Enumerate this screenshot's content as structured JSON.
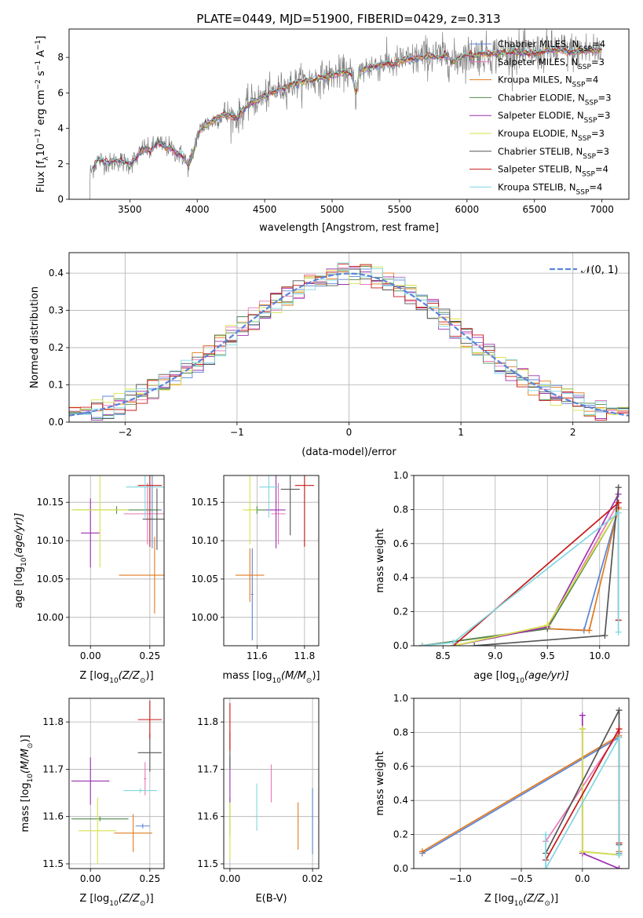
{
  "figure_title": "PLATE=0449, MJD=51900, FIBERID=0429, z=0.313",
  "colors": {
    "Chabrier MILES": "#5b84d6",
    "Salpeter MILES": "#e877b8",
    "Kroupa MILES": "#e07a1f",
    "Chabrier ELODIE": "#4f8a4f",
    "Salpeter ELODIE": "#9b30b0",
    "Kroupa ELODIE": "#d8e24a",
    "Chabrier STELIB": "#555555",
    "Salpeter STELIB": "#c81818",
    "Kroupa STELIB": "#7fd6e0",
    "spectrum": "#808080",
    "gaussian": "#5b84d6"
  },
  "chart_data": [
    {
      "id": "spectrum",
      "type": "line",
      "title": "PLATE=0449, MJD=51900, FIBERID=0429, z=0.313",
      "xlabel": "wavelength [Angstrom, rest frame]",
      "ylabel_parts": [
        "Flux [f",
        "λ",
        "10",
        "−17",
        " erg cm",
        "−2",
        " s",
        "−1",
        " A",
        "−1",
        "]"
      ],
      "xlim": [
        3050,
        7200
      ],
      "ylim": [
        0,
        9.6
      ],
      "xticks": [
        3500,
        4000,
        4500,
        5000,
        5500,
        6000,
        6500,
        7000
      ],
      "yticks": [
        0,
        2,
        4,
        6,
        8
      ],
      "grid": false,
      "legend_position": "top-right",
      "spectrum_range": [
        3200,
        7000
      ],
      "continuum": [
        [
          3200,
          1.4
        ],
        [
          3260,
          2.2
        ],
        [
          3300,
          2.2
        ],
        [
          3350,
          2.0
        ],
        [
          3400,
          2.2
        ],
        [
          3450,
          2.1
        ],
        [
          3500,
          2.0
        ],
        [
          3550,
          2.3
        ],
        [
          3600,
          2.9
        ],
        [
          3650,
          2.7
        ],
        [
          3700,
          3.2
        ],
        [
          3750,
          3.0
        ],
        [
          3800,
          2.9
        ],
        [
          3850,
          2.6
        ],
        [
          3900,
          2.4
        ],
        [
          3930,
          1.9
        ],
        [
          3970,
          2.6
        ],
        [
          4000,
          3.6
        ],
        [
          4050,
          4.2
        ],
        [
          4100,
          4.3
        ],
        [
          4150,
          4.6
        ],
        [
          4200,
          4.8
        ],
        [
          4250,
          4.7
        ],
        [
          4300,
          4.6
        ],
        [
          4350,
          5.1
        ],
        [
          4400,
          5.5
        ],
        [
          4450,
          5.6
        ],
        [
          4500,
          5.8
        ],
        [
          4550,
          6.0
        ],
        [
          4600,
          6.2
        ],
        [
          4650,
          6.3
        ],
        [
          4700,
          6.5
        ],
        [
          4750,
          6.6
        ],
        [
          4800,
          6.7
        ],
        [
          4850,
          6.7
        ],
        [
          4900,
          6.8
        ],
        [
          4950,
          6.9
        ],
        [
          5000,
          7.0
        ],
        [
          5050,
          7.1
        ],
        [
          5100,
          7.2
        ],
        [
          5150,
          7.0
        ],
        [
          5175,
          5.9
        ],
        [
          5200,
          7.1
        ],
        [
          5250,
          7.4
        ],
        [
          5300,
          7.5
        ],
        [
          5350,
          7.6
        ],
        [
          5400,
          7.7
        ],
        [
          5450,
          7.6
        ],
        [
          5500,
          7.8
        ],
        [
          5550,
          7.9
        ],
        [
          5600,
          7.9
        ],
        [
          5650,
          8.0
        ],
        [
          5700,
          8.1
        ],
        [
          5750,
          8.1
        ],
        [
          5800,
          8.0
        ],
        [
          5850,
          8.2
        ],
        [
          5890,
          7.7
        ],
        [
          5950,
          8.0
        ],
        [
          6000,
          8.1
        ],
        [
          6100,
          8.2
        ],
        [
          6200,
          8.2
        ],
        [
          6300,
          8.3
        ],
        [
          6400,
          8.3
        ],
        [
          6500,
          8.2
        ],
        [
          6600,
          8.4
        ],
        [
          6700,
          8.4
        ],
        [
          6800,
          8.3
        ],
        [
          6900,
          8.4
        ],
        [
          7000,
          8.4
        ]
      ],
      "models": [
        {
          "name": "Chabrier MILES",
          "nssp": "4"
        },
        {
          "name": "Salpeter MILES",
          "nssp": "3"
        },
        {
          "name": "Kroupa MILES",
          "nssp": "4"
        },
        {
          "name": "Chabrier ELODIE",
          "nssp": "3"
        },
        {
          "name": "Salpeter ELODIE",
          "nssp": "3"
        },
        {
          "name": "Kroupa ELODIE",
          "nssp": "3"
        },
        {
          "name": "Chabrier STELIB",
          "nssp": "3"
        },
        {
          "name": "Salpeter STELIB",
          "nssp": "4"
        },
        {
          "name": "Kroupa STELIB",
          "nssp": "4"
        }
      ],
      "legend_nssp_label": "N"
    },
    {
      "id": "residuals",
      "type": "line",
      "xlabel": "(data-model)/error",
      "ylabel": "Normed distribution",
      "xlim": [
        -2.5,
        2.5
      ],
      "ylim": [
        0,
        0.455
      ],
      "xticks": [
        -2,
        -1,
        0,
        1,
        2
      ],
      "yticks": [
        0.0,
        0.1,
        0.2,
        0.3,
        0.4
      ],
      "grid": true,
      "legend_position": "top-right",
      "legend_gaussian": "𝒩(0, 1)",
      "bin_width": 0.1
    },
    {
      "id": "age_vs_z",
      "type": "scatter",
      "xlabel": "Z [log",
      "xlabel_parts": [
        "Z [log",
        "10",
        "(Z/Z",
        "⊙",
        ")]"
      ],
      "ylabel_parts": [
        "age  [log",
        "10",
        "(age/yr)]"
      ],
      "xlim": [
        -0.09,
        0.31
      ],
      "ylim": [
        9.963,
        10.185
      ],
      "xticks": [
        0.0,
        0.25
      ],
      "yticks": [
        10.0,
        10.05,
        10.1,
        10.15
      ],
      "grid": true,
      "points": [
        {
          "model": "Chabrier MILES",
          "x": 0.26,
          "y": 10.14,
          "xerr": 0.04,
          "yerr": 0.05
        },
        {
          "model": "Salpeter MILES",
          "x": 0.24,
          "y": 10.135,
          "xerr": 0.1,
          "yerr": 0.04
        },
        {
          "model": "Kroupa MILES",
          "x": 0.27,
          "y": 10.055,
          "xerr": 0.15,
          "yerr": 0.05
        },
        {
          "model": "Chabrier ELODIE",
          "x": 0.11,
          "y": 10.14,
          "xerr": 0.18,
          "yerr": 0.005
        },
        {
          "model": "Salpeter ELODIE",
          "x": 0.0,
          "y": 10.11,
          "xerr": 0.04,
          "yerr": 0.045
        },
        {
          "model": "Kroupa ELODIE",
          "x": 0.04,
          "y": 10.14,
          "xerr": 0.12,
          "yerr": 0.075
        },
        {
          "model": "Chabrier STELIB",
          "x": 0.28,
          "y": 10.128,
          "xerr": 0.06,
          "yerr": 0.04
        },
        {
          "model": "Salpeter STELIB",
          "x": 0.25,
          "y": 10.172,
          "xerr": 0.05,
          "yerr": 0.08
        },
        {
          "model": "Kroupa STELIB",
          "x": 0.23,
          "y": 10.17,
          "xerr": 0.08,
          "yerr": 0.04
        }
      ]
    },
    {
      "id": "age_vs_mass",
      "type": "scatter",
      "xlabel_parts": [
        "mass [log",
        "10",
        "(M/M",
        "⊙",
        ")]"
      ],
      "xlim": [
        11.46,
        11.86
      ],
      "ylim": [
        9.963,
        10.185
      ],
      "xticks": [
        11.6,
        11.8
      ],
      "yticks": [
        10.0,
        10.05,
        10.1,
        10.15
      ],
      "grid": true,
      "points": [
        {
          "model": "Chabrier MILES",
          "x": 11.58,
          "y": 10.03,
          "xerr": 0.005,
          "yerr": 0.06
        },
        {
          "model": "Salpeter MILES",
          "x": 11.69,
          "y": 10.135,
          "xerr": 0.03,
          "yerr": 0.04
        },
        {
          "model": "Kroupa MILES",
          "x": 11.57,
          "y": 10.055,
          "xerr": 0.06,
          "yerr": 0.035
        },
        {
          "model": "Chabrier ELODIE",
          "x": 11.6,
          "y": 10.14,
          "xerr": 0.04,
          "yerr": 0.005
        },
        {
          "model": "Salpeter ELODIE",
          "x": 11.68,
          "y": 10.14,
          "xerr": 0.04,
          "yerr": 0.05
        },
        {
          "model": "Kroupa ELODIE",
          "x": 11.57,
          "y": 10.14,
          "xerr": 0.03,
          "yerr": 0.045
        },
        {
          "model": "Chabrier STELIB",
          "x": 11.74,
          "y": 10.167,
          "xerr": 0.04,
          "yerr": 0.06
        },
        {
          "model": "Salpeter STELIB",
          "x": 11.8,
          "y": 10.172,
          "xerr": 0.04,
          "yerr": 0.08
        },
        {
          "model": "Kroupa STELIB",
          "x": 11.65,
          "y": 10.17,
          "xerr": 0.04,
          "yerr": 0.04
        }
      ]
    },
    {
      "id": "weight_vs_age",
      "type": "line",
      "xlabel_parts": [
        "age  [log",
        "10",
        "(age/yr)]"
      ],
      "ylabel": "mass weight",
      "xlim": [
        8.22,
        10.28
      ],
      "ylim": [
        0,
        1.0
      ],
      "xticks": [
        8.5,
        9.0,
        9.5,
        10.0
      ],
      "yticks": [
        0.0,
        0.2,
        0.4,
        0.6,
        0.8,
        1.0
      ],
      "grid": true,
      "series": [
        {
          "model": "Chabrier MILES",
          "points": [
            [
              8.3,
              0.0
            ],
            [
              9.5,
              0.1
            ],
            [
              9.85,
              0.09
            ],
            [
              10.18,
              0.81
            ]
          ]
        },
        {
          "model": "Salpeter MILES",
          "points": [
            [
              8.3,
              0.0
            ],
            [
              9.5,
              0.1
            ],
            [
              10.18,
              0.84
            ]
          ]
        },
        {
          "model": "Kroupa MILES",
          "points": [
            [
              8.3,
              0.0
            ],
            [
              9.5,
              0.1
            ],
            [
              9.9,
              0.09
            ],
            [
              10.18,
              0.81
            ]
          ]
        },
        {
          "model": "Chabrier ELODIE",
          "points": [
            [
              8.3,
              0.0
            ],
            [
              9.5,
              0.1
            ],
            [
              10.18,
              0.8
            ]
          ]
        },
        {
          "model": "Salpeter ELODIE",
          "points": [
            [
              8.6,
              0.0
            ],
            [
              9.5,
              0.11
            ],
            [
              10.18,
              0.89
            ]
          ]
        },
        {
          "model": "Kroupa ELODIE",
          "points": [
            [
              8.6,
              0.0
            ],
            [
              9.5,
              0.12
            ],
            [
              10.18,
              0.8
            ]
          ]
        },
        {
          "model": "Chabrier STELIB",
          "points": [
            [
              8.8,
              0.0
            ],
            [
              10.05,
              0.06
            ],
            [
              10.18,
              0.93
            ]
          ]
        },
        {
          "model": "Salpeter STELIB",
          "points": [
            [
              8.6,
              0.0
            ],
            [
              10.18,
              0.84
            ],
            [
              10.18,
              0.15
            ]
          ]
        },
        {
          "model": "Kroupa STELIB",
          "points": [
            [
              8.3,
              0.0
            ],
            [
              8.6,
              0.02
            ],
            [
              10.18,
              0.78
            ],
            [
              10.18,
              0.08
            ]
          ]
        }
      ]
    },
    {
      "id": "mass_vs_z",
      "type": "scatter",
      "xlabel_parts": [
        "Z [log",
        "10",
        "(Z/Z",
        "⊙",
        ")]"
      ],
      "ylabel_parts": [
        "mass [log",
        "10",
        "(M/M",
        "⊙",
        ")]"
      ],
      "xlim": [
        -0.09,
        0.31
      ],
      "ylim": [
        11.49,
        11.85
      ],
      "xticks": [
        0.0,
        0.25
      ],
      "yticks": [
        11.5,
        11.6,
        11.7,
        11.8
      ],
      "grid": true,
      "points": [
        {
          "model": "Chabrier MILES",
          "x": 0.22,
          "y": 11.58,
          "xerr": 0.03,
          "yerr": 0.005
        },
        {
          "model": "Salpeter MILES",
          "x": 0.23,
          "y": 11.68,
          "xerr": 0.005,
          "yerr": 0.035
        },
        {
          "model": "Kroupa MILES",
          "x": 0.18,
          "y": 11.565,
          "xerr": 0.08,
          "yerr": 0.04
        },
        {
          "model": "Chabrier ELODIE",
          "x": 0.04,
          "y": 11.595,
          "xerr": 0.12,
          "yerr": 0.005
        },
        {
          "model": "Salpeter ELODIE",
          "x": 0.0,
          "y": 11.675,
          "xerr": 0.08,
          "yerr": 0.05
        },
        {
          "model": "Kroupa ELODIE",
          "x": 0.03,
          "y": 11.57,
          "xerr": 0.08,
          "yerr": 0.07
        },
        {
          "model": "Chabrier STELIB",
          "x": 0.25,
          "y": 11.735,
          "xerr": 0.05,
          "yerr": 0.04
        },
        {
          "model": "Salpeter STELIB",
          "x": 0.25,
          "y": 11.805,
          "xerr": 0.05,
          "yerr": 0.04
        },
        {
          "model": "Kroupa STELIB",
          "x": 0.21,
          "y": 11.655,
          "xerr": 0.07,
          "yerr": 0.005
        }
      ]
    },
    {
      "id": "mass_vs_ebv",
      "type": "scatter",
      "xlabel": "E(B-V)",
      "xlim": [
        -0.0015,
        0.0215
      ],
      "ylim": [
        11.49,
        11.85
      ],
      "xticks": [
        0.0,
        0.02
      ],
      "yticks": [
        11.5,
        11.6,
        11.7,
        11.8
      ],
      "grid": true,
      "points": [
        {
          "model": "Chabrier MILES",
          "x": 0.02,
          "y": 11.59,
          "xerr": 0.0,
          "yerr": 0.07
        },
        {
          "model": "Salpeter MILES",
          "x": 0.01,
          "y": 11.67,
          "xerr": 0.0,
          "yerr": 0.04
        },
        {
          "model": "Kroupa MILES",
          "x": 0.0165,
          "y": 11.58,
          "xerr": 0.0,
          "yerr": 0.05
        },
        {
          "model": "Chabrier ELODIE",
          "x": 0.0,
          "y": 11.6,
          "xerr": 0.0,
          "yerr": 0.04
        },
        {
          "model": "Salpeter ELODIE",
          "x": 0.0,
          "y": 11.68,
          "xerr": 0.0,
          "yerr": 0.05
        },
        {
          "model": "Kroupa ELODIE",
          "x": 0.0,
          "y": 11.57,
          "xerr": 0.0,
          "yerr": 0.06
        },
        {
          "model": "Chabrier STELIB",
          "x": 0.0,
          "y": 11.74,
          "xerr": 0.0,
          "yerr": 0.04
        },
        {
          "model": "Salpeter STELIB",
          "x": 0.0,
          "y": 11.79,
          "xerr": 0.0,
          "yerr": 0.05
        },
        {
          "model": "Kroupa STELIB",
          "x": 0.0065,
          "y": 11.62,
          "xerr": 0.0,
          "yerr": 0.05
        }
      ]
    },
    {
      "id": "weight_vs_z",
      "type": "line",
      "xlabel_parts": [
        "Z [log",
        "10",
        "(Z/Z",
        "⊙",
        ")]"
      ],
      "ylabel": "mass weight",
      "xlim": [
        -1.38,
        0.38
      ],
      "ylim": [
        0,
        1.0
      ],
      "xticks": [
        -1.0,
        -0.5,
        0.0
      ],
      "yticks": [
        0.0,
        0.2,
        0.4,
        0.6,
        0.8,
        1.0
      ],
      "grid": true,
      "series": [
        {
          "model": "Chabrier MILES",
          "points": [
            [
              -1.31,
              0.09
            ],
            [
              0.3,
              0.77
            ],
            [
              0.3,
              0.09
            ]
          ]
        },
        {
          "model": "Salpeter MILES",
          "points": [
            [
              -0.3,
              0.16
            ],
            [
              0.3,
              0.8
            ]
          ]
        },
        {
          "model": "Kroupa MILES",
          "points": [
            [
              -1.31,
              0.1
            ],
            [
              0.3,
              0.78
            ],
            [
              0.3,
              0.1
            ]
          ]
        },
        {
          "model": "Chabrier ELODIE",
          "points": [
            [
              0.0,
              0.82
            ],
            [
              0.0,
              0.1
            ],
            [
              0.3,
              0.08
            ]
          ]
        },
        {
          "model": "Salpeter ELODIE",
          "points": [
            [
              0.0,
              0.9
            ],
            [
              0.0,
              0.09
            ],
            [
              0.3,
              0.0
            ]
          ]
        },
        {
          "model": "Kroupa ELODIE",
          "points": [
            [
              0.0,
              0.82
            ],
            [
              0.0,
              0.1
            ],
            [
              0.3,
              0.08
            ]
          ]
        },
        {
          "model": "Chabrier STELIB",
          "points": [
            [
              -0.3,
              0.09
            ],
            [
              0.3,
              0.93
            ],
            [
              0.3,
              0.14
            ]
          ]
        },
        {
          "model": "Salpeter STELIB",
          "points": [
            [
              -0.3,
              0.05
            ],
            [
              0.3,
              0.82
            ],
            [
              0.3,
              0.15
            ]
          ]
        },
        {
          "model": "Kroupa STELIB",
          "points": [
            [
              -0.3,
              0.2
            ],
            [
              -0.3,
              0.0
            ],
            [
              0.3,
              0.77
            ],
            [
              0.3,
              0.08
            ]
          ]
        }
      ]
    }
  ]
}
